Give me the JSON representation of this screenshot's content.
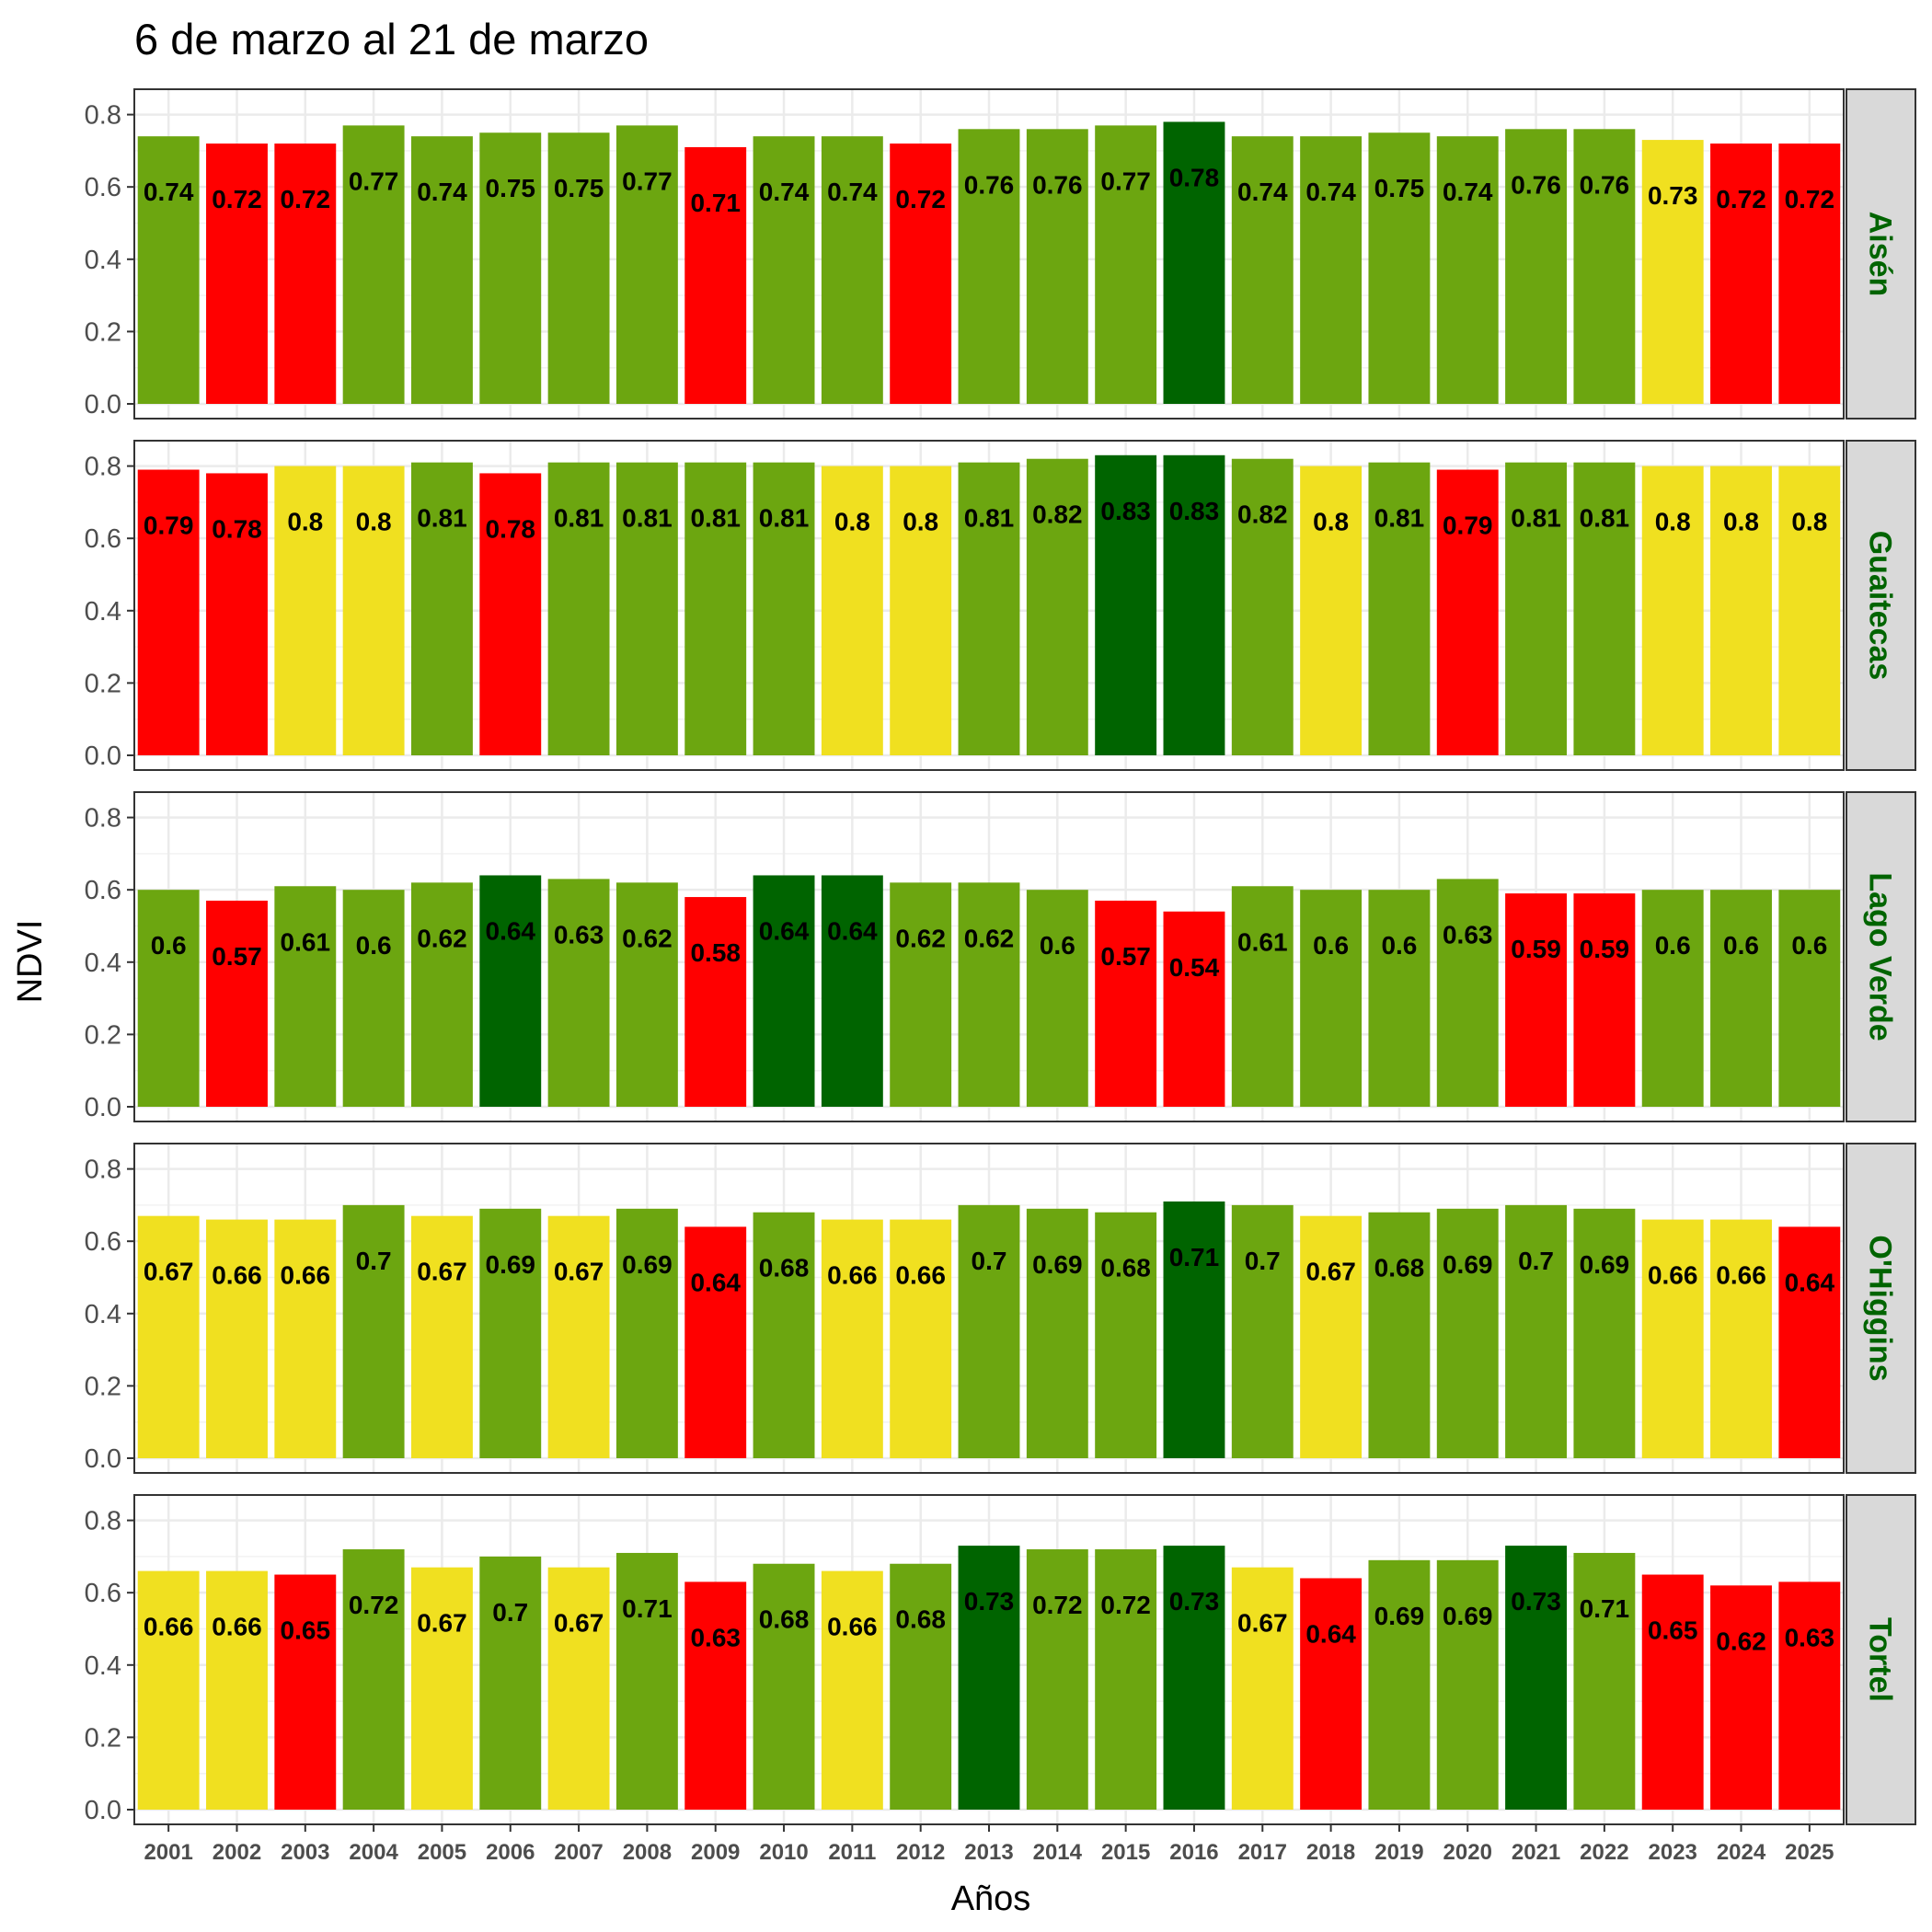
{
  "chart_data": {
    "type": "bar",
    "title": "6 de marzo al 21 de marzo",
    "xlabel": "Años",
    "ylabel": "NDVI",
    "ylim": [
      0,
      0.86
    ],
    "yticks": [
      "0.0",
      "0.2",
      "0.4",
      "0.6",
      "0.8"
    ],
    "ytick_values": [
      0,
      0.2,
      0.4,
      0.6,
      0.8
    ],
    "grid": true,
    "categories": [
      "2001",
      "2002",
      "2003",
      "2004",
      "2005",
      "2006",
      "2007",
      "2008",
      "2009",
      "2010",
      "2011",
      "2012",
      "2013",
      "2014",
      "2015",
      "2016",
      "2017",
      "2018",
      "2019",
      "2020",
      "2021",
      "2022",
      "2023",
      "2024",
      "2025"
    ],
    "colors": {
      "very_high": "#006400",
      "high": "#6ca610",
      "medium": "#f0e020",
      "low": "#ff0000",
      "strip_bg": "#d9d9d9",
      "strip_text": "#006400"
    },
    "panels": [
      {
        "name": "Aisén",
        "values": [
          0.74,
          0.72,
          0.72,
          0.77,
          0.74,
          0.75,
          0.75,
          0.77,
          0.71,
          0.74,
          0.74,
          0.72,
          0.76,
          0.76,
          0.77,
          0.78,
          0.74,
          0.74,
          0.75,
          0.74,
          0.76,
          0.76,
          0.73,
          0.72,
          0.72
        ],
        "labels": [
          "0.74",
          "0.72",
          "0.72",
          "0.77",
          "0.74",
          "0.75",
          "0.75",
          "0.77",
          "0.71",
          "0.74",
          "0.74",
          "0.72",
          "0.76",
          "0.76",
          "0.77",
          "0.78",
          "0.74",
          "0.74",
          "0.75",
          "0.74",
          "0.76",
          "0.76",
          "0.73",
          "0.72",
          "0.72"
        ],
        "classes": [
          "high",
          "low",
          "low",
          "high",
          "high",
          "high",
          "high",
          "high",
          "low",
          "high",
          "high",
          "low",
          "high",
          "high",
          "high",
          "very_high",
          "high",
          "high",
          "high",
          "high",
          "high",
          "high",
          "medium",
          "low",
          "low"
        ]
      },
      {
        "name": "Guaitecas",
        "values": [
          0.79,
          0.78,
          0.8,
          0.8,
          0.81,
          0.78,
          0.81,
          0.81,
          0.81,
          0.81,
          0.8,
          0.8,
          0.81,
          0.82,
          0.83,
          0.83,
          0.82,
          0.8,
          0.81,
          0.79,
          0.81,
          0.81,
          0.8,
          0.8,
          0.8
        ],
        "labels": [
          "0.79",
          "0.78",
          "0.8",
          "0.8",
          "0.81",
          "0.78",
          "0.81",
          "0.81",
          "0.81",
          "0.81",
          "0.8",
          "0.8",
          "0.81",
          "0.82",
          "0.83",
          "0.83",
          "0.82",
          "0.8",
          "0.81",
          "0.79",
          "0.81",
          "0.81",
          "0.8",
          "0.8",
          "0.8"
        ],
        "classes": [
          "low",
          "low",
          "medium",
          "medium",
          "high",
          "low",
          "high",
          "high",
          "high",
          "high",
          "medium",
          "medium",
          "high",
          "high",
          "very_high",
          "very_high",
          "high",
          "medium",
          "high",
          "low",
          "high",
          "high",
          "medium",
          "medium",
          "medium"
        ]
      },
      {
        "name": "Lago Verde",
        "values": [
          0.6,
          0.57,
          0.61,
          0.6,
          0.62,
          0.64,
          0.63,
          0.62,
          0.58,
          0.64,
          0.64,
          0.62,
          0.62,
          0.6,
          0.57,
          0.54,
          0.61,
          0.6,
          0.6,
          0.63,
          0.59,
          0.59,
          0.6,
          0.6,
          0.6
        ],
        "labels": [
          "0.6",
          "0.57",
          "0.61",
          "0.6",
          "0.62",
          "0.64",
          "0.63",
          "0.62",
          "0.58",
          "0.64",
          "0.64",
          "0.62",
          "0.62",
          "0.6",
          "0.57",
          "0.54",
          "0.61",
          "0.6",
          "0.6",
          "0.63",
          "0.59",
          "0.59",
          "0.6",
          "0.6",
          "0.6"
        ],
        "classes": [
          "high",
          "low",
          "high",
          "high",
          "high",
          "very_high",
          "high",
          "high",
          "low",
          "very_high",
          "very_high",
          "high",
          "high",
          "high",
          "low",
          "low",
          "high",
          "high",
          "high",
          "high",
          "low",
          "low",
          "high",
          "high",
          "high"
        ]
      },
      {
        "name": "O'Higgins",
        "values": [
          0.67,
          0.66,
          0.66,
          0.7,
          0.67,
          0.69,
          0.67,
          0.69,
          0.64,
          0.68,
          0.66,
          0.66,
          0.7,
          0.69,
          0.68,
          0.71,
          0.7,
          0.67,
          0.68,
          0.69,
          0.7,
          0.69,
          0.66,
          0.66,
          0.64
        ],
        "labels": [
          "0.67",
          "0.66",
          "0.66",
          "0.7",
          "0.67",
          "0.69",
          "0.67",
          "0.69",
          "0.64",
          "0.68",
          "0.66",
          "0.66",
          "0.7",
          "0.69",
          "0.68",
          "0.71",
          "0.7",
          "0.67",
          "0.68",
          "0.69",
          "0.7",
          "0.69",
          "0.66",
          "0.66",
          "0.64"
        ],
        "classes": [
          "medium",
          "medium",
          "medium",
          "high",
          "medium",
          "high",
          "medium",
          "high",
          "low",
          "high",
          "medium",
          "medium",
          "high",
          "high",
          "high",
          "very_high",
          "high",
          "medium",
          "high",
          "high",
          "high",
          "high",
          "medium",
          "medium",
          "low"
        ]
      },
      {
        "name": "Tortel",
        "values": [
          0.66,
          0.66,
          0.65,
          0.72,
          0.67,
          0.7,
          0.67,
          0.71,
          0.63,
          0.68,
          0.66,
          0.68,
          0.73,
          0.72,
          0.72,
          0.73,
          0.67,
          0.64,
          0.69,
          0.69,
          0.73,
          0.71,
          0.65,
          0.62,
          0.63
        ],
        "labels": [
          "0.66",
          "0.66",
          "0.65",
          "0.72",
          "0.67",
          "0.7",
          "0.67",
          "0.71",
          "0.63",
          "0.68",
          "0.66",
          "0.68",
          "0.73",
          "0.72",
          "0.72",
          "0.73",
          "0.67",
          "0.64",
          "0.69",
          "0.69",
          "0.73",
          "0.71",
          "0.65",
          "0.62",
          "0.63"
        ],
        "classes": [
          "medium",
          "medium",
          "low",
          "high",
          "medium",
          "high",
          "medium",
          "high",
          "low",
          "high",
          "medium",
          "high",
          "very_high",
          "high",
          "high",
          "very_high",
          "medium",
          "low",
          "high",
          "high",
          "very_high",
          "high",
          "low",
          "low",
          "low"
        ]
      }
    ]
  }
}
